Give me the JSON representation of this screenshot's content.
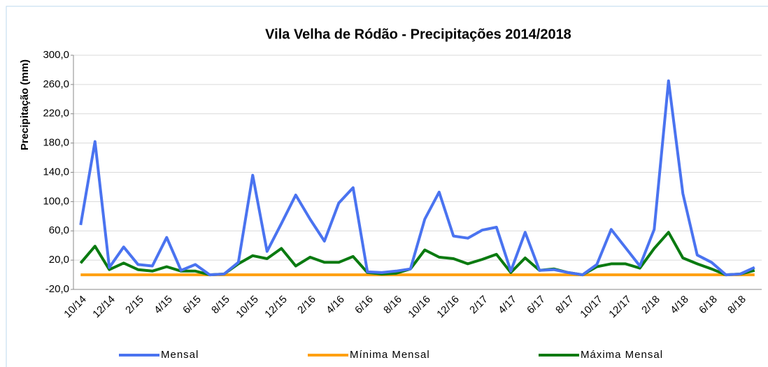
{
  "chart_data": {
    "type": "line",
    "title": "Vila Velha de Ródão - Precipitações 2014/2018",
    "y_label": "Precipitação (mm)",
    "categories": [
      "10/14",
      null,
      "12/14",
      null,
      "2/15",
      null,
      "4/15",
      null,
      "6/15",
      null,
      "8/15",
      null,
      "10/15",
      null,
      "12/15",
      null,
      "2/16",
      null,
      "4/16",
      null,
      "6/16",
      null,
      "8/16",
      null,
      "10/16",
      null,
      "12/16",
      null,
      "2/17",
      null,
      "4/17",
      null,
      "6/17",
      null,
      "8/17",
      null,
      "10/17",
      null,
      "12/17",
      null,
      "2/18",
      null,
      "4/18",
      null,
      "6/18",
      null,
      "8/18",
      null
    ],
    "series": [
      {
        "name": "Mensal",
        "color": "#4a73f0",
        "values": [
          68,
          182,
          10,
          38,
          14,
          12,
          51,
          6,
          14,
          0,
          1,
          17,
          136,
          32,
          70,
          109,
          76,
          46,
          98,
          119,
          4,
          3,
          5,
          8,
          76,
          113,
          53,
          50,
          61,
          65,
          5,
          58,
          6,
          7,
          3,
          0,
          14,
          62,
          37,
          12,
          62,
          265,
          111,
          27,
          17,
          0,
          1,
          10
        ]
      },
      {
        "name": "Mínima Mensal",
        "color": "#ffa010",
        "values": [
          0,
          0,
          0,
          0,
          0,
          0,
          0,
          0,
          0,
          0,
          0,
          0,
          0,
          0,
          0,
          0,
          0,
          0,
          0,
          0,
          0,
          0,
          0,
          0,
          0,
          0,
          0,
          0,
          0,
          0,
          0,
          0,
          0,
          0,
          0,
          0,
          0,
          0,
          0,
          0,
          0,
          0,
          0,
          0,
          0,
          0,
          0,
          0
        ]
      },
      {
        "name": "Máxima Mensal",
        "color": "#0a7a10",
        "values": [
          16,
          39,
          7,
          16,
          7,
          5,
          11,
          5,
          5,
          0,
          1,
          15,
          26,
          22,
          36,
          12,
          24,
          17,
          17,
          25,
          3,
          1,
          2,
          8,
          34,
          24,
          22,
          15,
          21,
          28,
          3,
          23,
          6,
          8,
          3,
          0,
          11,
          15,
          15,
          9,
          36,
          58,
          23,
          15,
          8,
          0,
          1,
          6
        ]
      }
    ],
    "ylim": [
      -20,
      300
    ],
    "yticks": [
      {
        "value": -20,
        "label": "-20,0"
      },
      {
        "value": 20,
        "label": "20,0"
      },
      {
        "value": 60,
        "label": "60,0"
      },
      {
        "value": 100,
        "label": "100,0"
      },
      {
        "value": 140,
        "label": "140,0"
      },
      {
        "value": 180,
        "label": "180,0"
      },
      {
        "value": 220,
        "label": "220,0"
      },
      {
        "value": 260,
        "label": "260,0"
      },
      {
        "value": 300,
        "label": "300,0"
      }
    ],
    "grid": true
  }
}
